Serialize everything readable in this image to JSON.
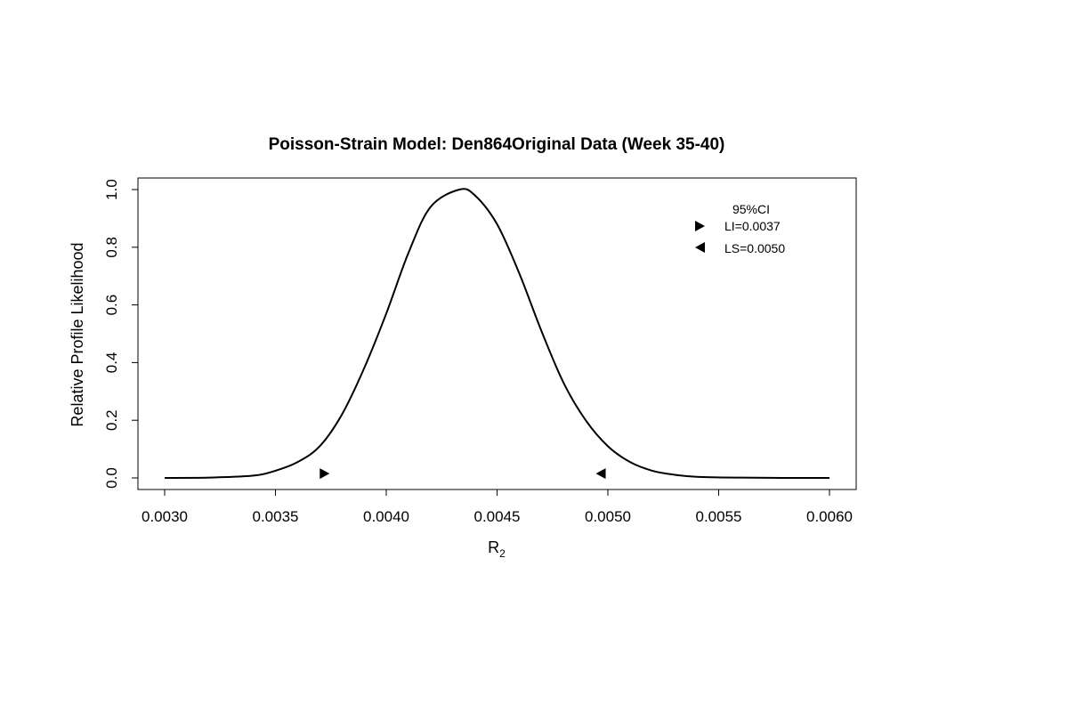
{
  "chart_data": {
    "type": "line",
    "title": "Poisson-Strain Model: Den864Original Data (Week 35-40)",
    "xlabel_main": "R",
    "xlabel_sub": "2",
    "ylabel": "Relative Profile Likelihood",
    "xlim": [
      0.003,
      0.006
    ],
    "ylim": [
      0.0,
      1.0
    ],
    "x_ticks": [
      "0.0030",
      "0.0035",
      "0.0040",
      "0.0045",
      "0.0050",
      "0.0055",
      "0.0060"
    ],
    "y_ticks": [
      "0.0",
      "0.2",
      "0.4",
      "0.6",
      "0.8",
      "1.0"
    ],
    "series": [
      {
        "x": [
          0.003,
          0.0032,
          0.0034,
          0.0035,
          0.0036,
          0.0037,
          0.0038,
          0.0039,
          0.004,
          0.0041,
          0.0042,
          0.00433,
          0.0044,
          0.0045,
          0.0046,
          0.0047,
          0.0048,
          0.0049,
          0.005,
          0.0051,
          0.0052,
          0.0053,
          0.0054,
          0.0056,
          0.0058,
          0.006
        ],
        "y": [
          0.0,
          0.001,
          0.008,
          0.025,
          0.055,
          0.11,
          0.22,
          0.38,
          0.57,
          0.78,
          0.94,
          1.0,
          0.98,
          0.88,
          0.71,
          0.51,
          0.33,
          0.2,
          0.11,
          0.055,
          0.025,
          0.011,
          0.004,
          0.001,
          0.0,
          0.0
        ]
      }
    ],
    "markers": [
      {
        "label": "LI=0.0037",
        "x": 0.00372,
        "y": 0.015,
        "direction": "right"
      },
      {
        "label": "LS=0.0050",
        "x": 0.00497,
        "y": 0.015,
        "direction": "left"
      }
    ],
    "legend": {
      "title": "95%CI",
      "placement": "top-right",
      "entries": [
        "LI=0.0037",
        "LS=0.0050"
      ]
    }
  }
}
